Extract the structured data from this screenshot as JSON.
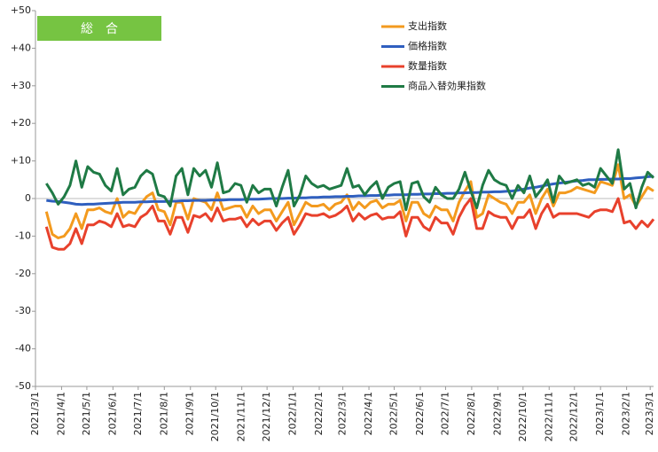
{
  "chart_data": {
    "type": "line",
    "title": "総　合",
    "x": [
      "2021/3/14",
      "2021/3/21",
      "2021/3/28",
      "2021/4/4",
      "2021/4/11",
      "2021/4/18",
      "2021/4/25",
      "2021/5/2",
      "2021/5/9",
      "2021/5/16",
      "2021/5/23",
      "2021/5/30",
      "2021/6/6",
      "2021/6/13",
      "2021/6/20",
      "2021/6/27",
      "2021/7/4",
      "2021/7/11",
      "2021/7/18",
      "2021/7/25",
      "2021/8/1",
      "2021/8/8",
      "2021/8/15",
      "2021/8/22",
      "2021/8/29",
      "2021/9/5",
      "2021/9/12",
      "2021/9/19",
      "2021/9/26",
      "2021/10/3",
      "2021/10/10",
      "2021/10/17",
      "2021/10/24",
      "2021/10/31",
      "2021/11/7",
      "2021/11/14",
      "2021/11/21",
      "2021/11/28",
      "2021/12/5",
      "2021/12/12",
      "2021/12/19",
      "2021/12/26",
      "2022/1/2",
      "2022/1/9",
      "2022/1/16",
      "2022/1/23",
      "2022/1/30",
      "2022/2/6",
      "2022/2/13",
      "2022/2/20",
      "2022/2/27",
      "2022/3/6",
      "2022/3/13",
      "2022/3/20",
      "2022/3/27",
      "2022/4/3",
      "2022/4/10",
      "2022/4/17",
      "2022/4/24",
      "2022/5/1",
      "2022/5/8",
      "2022/5/15",
      "2022/5/22",
      "2022/5/29",
      "2022/6/5",
      "2022/6/12",
      "2022/6/19",
      "2022/6/26",
      "2022/7/3",
      "2022/7/10",
      "2022/7/17",
      "2022/7/24",
      "2022/7/31",
      "2022/8/7",
      "2022/8/14",
      "2022/8/21",
      "2022/8/28",
      "2022/9/4",
      "2022/9/11",
      "2022/9/18",
      "2022/9/25",
      "2022/10/2",
      "2022/10/9",
      "2022/10/16",
      "2022/10/23",
      "2022/10/30",
      "2022/11/6",
      "2022/11/13",
      "2022/11/20",
      "2022/11/27",
      "2022/12/4",
      "2022/12/11",
      "2022/12/18",
      "2022/12/25",
      "2023/1/1",
      "2023/1/8",
      "2023/1/15",
      "2023/1/22",
      "2023/1/29",
      "2023/2/5",
      "2023/2/12",
      "2023/2/19",
      "2023/2/26",
      "2023/3/5"
    ],
    "series": [
      {
        "name": "支出指数",
        "color": "#f39a1e",
        "values": [
          -3.5,
          -9.5,
          -10.5,
          -10,
          -8,
          -4,
          -8,
          -3,
          -3,
          -2.5,
          -3.5,
          -4,
          0,
          -5,
          -3.5,
          -4,
          -1.5,
          0.5,
          1.5,
          -3,
          -3.5,
          -7,
          -1,
          -1,
          -5.5,
          0,
          -0.5,
          -1,
          -3,
          1.5,
          -3,
          -2.5,
          -2,
          -2,
          -5,
          -2,
          -4,
          -3,
          -3,
          -6,
          -3.5,
          -1,
          -7,
          -4,
          -1,
          -2,
          -2,
          -1.5,
          -3,
          -1.5,
          -1,
          1,
          -3,
          -1,
          -2.5,
          -1,
          -0.5,
          -2.5,
          -1.5,
          -1.5,
          -0.5,
          -6,
          -1,
          -1,
          -4,
          -5,
          -2,
          -3,
          -3,
          -6,
          -1,
          2,
          4.5,
          -5,
          -4,
          1,
          0,
          -1,
          -1.5,
          -4,
          -1,
          -1,
          1,
          -4,
          0,
          2.5,
          -2,
          1.5,
          1.5,
          2,
          3,
          2.5,
          2,
          1.5,
          4.5,
          4,
          3.5,
          9,
          0,
          1,
          -2,
          0.5,
          3,
          2
        ]
      },
      {
        "name": "価格指数",
        "color": "#2f5fbf",
        "values": [
          -0.5,
          -0.7,
          -0.8,
          -1,
          -1.2,
          -1.5,
          -1.6,
          -1.5,
          -1.5,
          -1.4,
          -1.3,
          -1.2,
          -1.1,
          -1,
          -1,
          -1,
          -0.9,
          -0.9,
          -0.8,
          -0.8,
          -0.8,
          -0.7,
          -0.7,
          -0.6,
          -0.6,
          -0.5,
          -0.5,
          -0.5,
          -0.4,
          -0.4,
          -0.4,
          -0.3,
          -0.3,
          -0.3,
          -0.2,
          -0.2,
          -0.2,
          -0.1,
          0,
          0,
          0,
          0.1,
          0.1,
          0.2,
          0.2,
          0.3,
          0.3,
          0.4,
          0.4,
          0.5,
          0.5,
          0.6,
          0.6,
          0.7,
          0.7,
          0.8,
          0.8,
          0.9,
          0.9,
          1,
          1,
          1,
          1.1,
          1.1,
          1.2,
          1.2,
          1.3,
          1.3,
          1.4,
          1.4,
          1.5,
          1.5,
          1.6,
          1.6,
          1.7,
          1.7,
          1.8,
          1.8,
          1.9,
          2,
          2.2,
          2.5,
          2.8,
          3,
          3.3,
          3.6,
          3.9,
          4.1,
          4.3,
          4.5,
          4.7,
          4.8,
          5,
          5,
          5.1,
          5.1,
          5.2,
          5.2,
          5.3,
          5.3,
          5.5,
          5.6,
          5.8,
          5.9
        ]
      },
      {
        "name": "数量指数",
        "color": "#e8412c",
        "values": [
          -7.5,
          -13,
          -13.5,
          -13.5,
          -12,
          -8,
          -12,
          -7,
          -7,
          -6,
          -6.5,
          -7.5,
          -4,
          -7.5,
          -7,
          -7.5,
          -5,
          -4,
          -2,
          -6,
          -6,
          -9.5,
          -5,
          -5,
          -9,
          -4.5,
          -5,
          -4,
          -6,
          -2.5,
          -6,
          -5.5,
          -5.5,
          -5,
          -7.5,
          -5.5,
          -7,
          -6,
          -6,
          -8.5,
          -6.5,
          -5,
          -9.5,
          -7,
          -4,
          -4.5,
          -4.5,
          -4,
          -5,
          -4.5,
          -3.5,
          -2,
          -6,
          -4,
          -5.5,
          -4.5,
          -4,
          -5.5,
          -5,
          -5,
          -3.5,
          -10,
          -5,
          -5,
          -7.5,
          -8.5,
          -5,
          -6.5,
          -6.5,
          -9.5,
          -5,
          -2,
          0,
          -8,
          -8,
          -3.5,
          -4.5,
          -5,
          -5,
          -8,
          -5,
          -5,
          -3,
          -8,
          -4,
          -1.5,
          -5,
          -4,
          -4,
          -4,
          -4,
          -4.5,
          -5,
          -3.5,
          -3,
          -3,
          -3.5,
          0,
          -6.5,
          -6,
          -8,
          -6,
          -7.5,
          -5.5
        ]
      },
      {
        "name": "商品入替効果指数",
        "color": "#1f7a45",
        "values": [
          4,
          1.5,
          -1.5,
          0.5,
          3.5,
          10,
          3,
          8.5,
          7,
          6.5,
          3.5,
          2,
          8,
          1,
          2.5,
          3,
          6,
          7.5,
          6.5,
          1,
          0.5,
          -2,
          6,
          8,
          1,
          8,
          6,
          7.5,
          3,
          9.5,
          1.5,
          2,
          4,
          3.5,
          -1,
          3.5,
          1.5,
          2.5,
          2.5,
          -2,
          3,
          7.5,
          -2,
          1,
          6,
          4,
          3,
          3.5,
          2.5,
          3,
          3.5,
          8,
          3,
          3.5,
          1,
          3,
          4.5,
          0,
          3,
          4,
          4.5,
          -3,
          4,
          4.5,
          0.5,
          -1,
          3,
          1,
          0,
          0,
          2.5,
          7,
          2,
          -2.5,
          3.5,
          7.5,
          5,
          4,
          3.5,
          0,
          3.5,
          1.5,
          6,
          0.5,
          2.5,
          5,
          -1,
          6,
          4,
          4.5,
          5,
          3.5,
          4,
          3,
          8,
          6,
          4,
          13,
          2.5,
          4,
          -2.5,
          3,
          7,
          5.5
        ]
      }
    ],
    "xlim": [
      "2021/3/1",
      "2023/3/5"
    ],
    "xticks": [
      "2021/3/1",
      "2021/4/1",
      "2021/5/1",
      "2021/6/1",
      "2021/7/1",
      "2021/8/1",
      "2021/9/1",
      "2021/10/1",
      "2021/11/1",
      "2021/12/1",
      "2022/1/1",
      "2022/2/1",
      "2022/3/1",
      "2022/4/1",
      "2022/5/1",
      "2022/6/1",
      "2022/7/1",
      "2022/8/1",
      "2022/9/1",
      "2022/10/1",
      "2022/11/1",
      "2022/12/1",
      "2023/1/1",
      "2023/2/1",
      "2023/3/1"
    ],
    "ylim": [
      -50,
      50
    ],
    "yticks": [
      {
        "value": 50,
        "label": "+50"
      },
      {
        "value": 40,
        "label": "+40"
      },
      {
        "value": 30,
        "label": "+30"
      },
      {
        "value": 20,
        "label": "+20"
      },
      {
        "value": 10,
        "label": "+10"
      },
      0,
      -10,
      -20,
      -30,
      -40,
      -50
    ]
  }
}
